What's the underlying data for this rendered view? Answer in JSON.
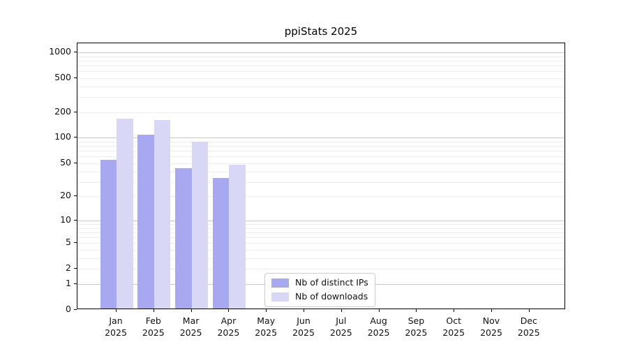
{
  "title": "ppiStats 2025",
  "chart_data": {
    "type": "bar",
    "title": "ppiStats 2025",
    "categories": [
      "Jan",
      "Feb",
      "Mar",
      "Apr",
      "May",
      "Jun",
      "Jul",
      "Aug",
      "Sep",
      "Oct",
      "Nov",
      "Dec"
    ],
    "category_year": "2025",
    "series": [
      {
        "name": "Nb of distinct IPs",
        "color": "#a8a8f0",
        "values": [
          54,
          107,
          43,
          33,
          null,
          null,
          null,
          null,
          null,
          null,
          null,
          null
        ]
      },
      {
        "name": "Nb of downloads",
        "color": "#d8d8f6",
        "values": [
          165,
          160,
          89,
          47,
          null,
          null,
          null,
          null,
          null,
          null,
          null,
          null
        ]
      }
    ],
    "yscale": "log10(value+1)",
    "yticks": [
      0,
      1,
      2,
      5,
      10,
      20,
      50,
      100,
      200,
      500,
      1000
    ],
    "ylim_log_max": 3.106,
    "grid": "horizontal; major gridlines at 1,10,100,1000; faint minor gridlines between",
    "legend_position": "inside plot, lower center"
  },
  "legend": {
    "items": [
      {
        "label": "Nb of distinct IPs"
      },
      {
        "label": "Nb of downloads"
      }
    ]
  },
  "colors": {
    "series_distinct_ips": "#a8a8f0",
    "series_downloads": "#d8d8f6",
    "grid_major": "#c6c6c6",
    "grid_minor": "#eeeeee",
    "spine": "#000000",
    "background": "#ffffff"
  }
}
